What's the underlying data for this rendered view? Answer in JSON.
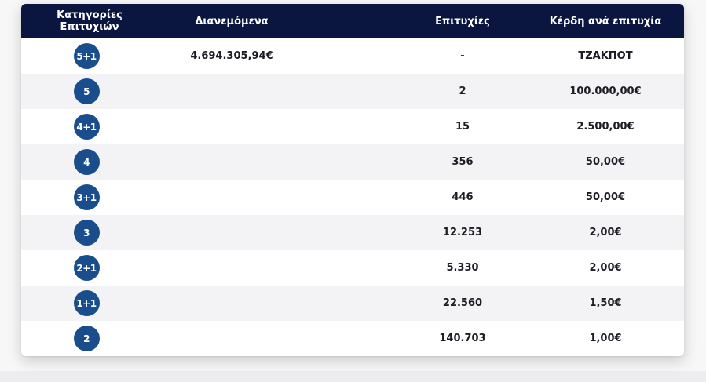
{
  "table": {
    "headers": {
      "category": "Κατηγορίες Επιτυχιών",
      "distributed": "Διανεμόμενα",
      "winners": "Επιτυχίες",
      "prize": "Κέρδη ανά επιτυχία"
    },
    "rows": [
      {
        "category": "5+1",
        "distributed": "4.694.305,94€",
        "winners": "-",
        "prize": "ΤΖΑΚΠΟΤ"
      },
      {
        "category": "5",
        "distributed": "",
        "winners": "2",
        "prize": "100.000,00€"
      },
      {
        "category": "4+1",
        "distributed": "",
        "winners": "15",
        "prize": "2.500,00€"
      },
      {
        "category": "4",
        "distributed": "",
        "winners": "356",
        "prize": "50,00€"
      },
      {
        "category": "3+1",
        "distributed": "",
        "winners": "446",
        "prize": "50,00€"
      },
      {
        "category": "3",
        "distributed": "",
        "winners": "12.253",
        "prize": "2,00€"
      },
      {
        "category": "2+1",
        "distributed": "",
        "winners": "5.330",
        "prize": "2,00€"
      },
      {
        "category": "1+1",
        "distributed": "",
        "winners": "22.560",
        "prize": "1,50€"
      },
      {
        "category": "2",
        "distributed": "",
        "winners": "140.703",
        "prize": "1,00€"
      }
    ]
  },
  "colors": {
    "header_bg": "#0a1540",
    "badge_bg": "#1a4d8c",
    "row_alt_bg": "#f3f3f6"
  }
}
